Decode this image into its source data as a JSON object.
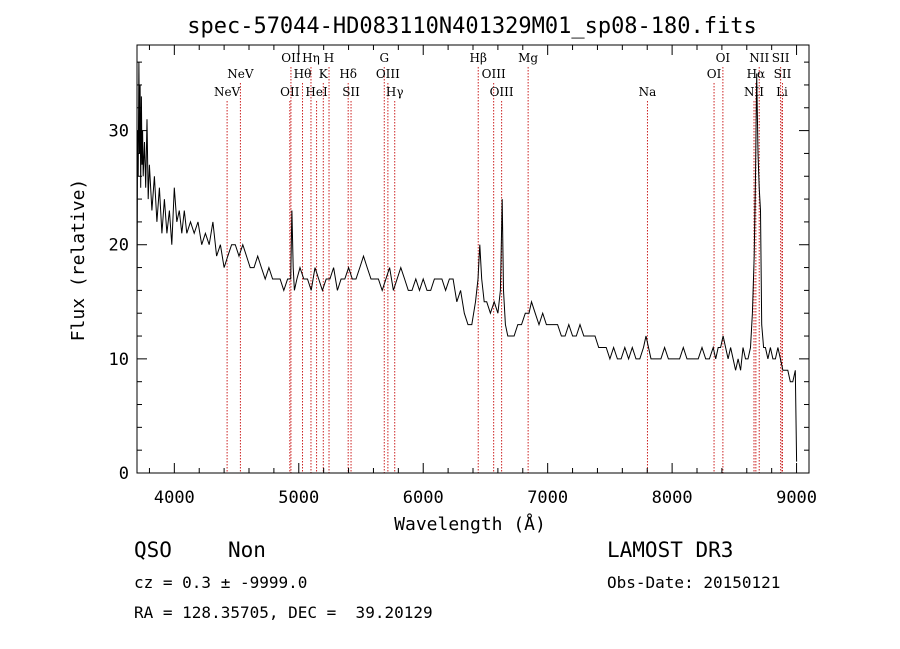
{
  "chart_data": {
    "type": "line",
    "title": "spec-57044-HD083110N401329M01_sp08-180.fits",
    "xlabel": "Wavelength (Å)",
    "ylabel": "Flux (relative)",
    "xlim": [
      3700,
      9100
    ],
    "ylim": [
      0,
      37.5
    ],
    "xticks": [
      4000,
      5000,
      6000,
      7000,
      8000,
      9000
    ],
    "yticks": [
      0,
      10,
      20,
      30
    ],
    "grid": false,
    "line_color": "#000000",
    "marker_color": "#cc2222",
    "series": [
      {
        "x": [
          3700,
          3705,
          3710,
          3715,
          3720,
          3725,
          3730,
          3735,
          3740,
          3745,
          3750,
          3760,
          3770,
          3780,
          3790,
          3800,
          3820,
          3840,
          3860,
          3880,
          3900,
          3920,
          3940,
          3960,
          3980,
          4000,
          4020,
          4040,
          4060,
          4080,
          4100,
          4130,
          4160,
          4190,
          4220,
          4250,
          4280,
          4310,
          4340,
          4370,
          4400,
          4430,
          4460,
          4490,
          4520,
          4550,
          4580,
          4610,
          4640,
          4670,
          4700,
          4730,
          4760,
          4790,
          4820,
          4850,
          4880,
          4910,
          4935,
          4945,
          4955,
          4965,
          4985,
          5010,
          5040,
          5070,
          5100,
          5130,
          5160,
          5190,
          5220,
          5250,
          5280,
          5310,
          5340,
          5370,
          5400,
          5430,
          5460,
          5490,
          5520,
          5550,
          5580,
          5610,
          5640,
          5670,
          5700,
          5730,
          5760,
          5790,
          5820,
          5850,
          5880,
          5910,
          5940,
          5970,
          6000,
          6030,
          6060,
          6090,
          6120,
          6150,
          6180,
          6210,
          6240,
          6270,
          6300,
          6330,
          6360,
          6390,
          6420,
          6440,
          6455,
          6470,
          6490,
          6510,
          6540,
          6570,
          6600,
          6620,
          6635,
          6645,
          6660,
          6680,
          6700,
          6730,
          6760,
          6790,
          6820,
          6850,
          6870,
          6900,
          6930,
          6960,
          6990,
          7020,
          7050,
          7080,
          7110,
          7140,
          7170,
          7200,
          7230,
          7260,
          7290,
          7320,
          7350,
          7380,
          7410,
          7440,
          7470,
          7500,
          7530,
          7560,
          7590,
          7620,
          7650,
          7680,
          7710,
          7740,
          7770,
          7790,
          7810,
          7830,
          7850,
          7880,
          7910,
          7940,
          7970,
          8000,
          8030,
          8060,
          8090,
          8120,
          8150,
          8180,
          8210,
          8240,
          8270,
          8300,
          8330,
          8350,
          8370,
          8390,
          8410,
          8430,
          8450,
          8470,
          8490,
          8510,
          8530,
          8550,
          8570,
          8590,
          8610,
          8630,
          8645,
          8660,
          8670,
          8680,
          8690,
          8700,
          8710,
          8720,
          8735,
          8750,
          8770,
          8790,
          8810,
          8830,
          8850,
          8870,
          8890,
          8910,
          8930,
          8950,
          8970,
          8990,
          9000
        ],
        "y": [
          14,
          30,
          26,
          36,
          28,
          34,
          25,
          33,
          27,
          30,
          26,
          29,
          25,
          31,
          24,
          27,
          23,
          26,
          22,
          25,
          21,
          24,
          21,
          23,
          20,
          25,
          22,
          23,
          21,
          23,
          21,
          22,
          21,
          22,
          20,
          21,
          20,
          22,
          19,
          20,
          18,
          19,
          20,
          20,
          19,
          20,
          19,
          18,
          18,
          19,
          18,
          17,
          18,
          17,
          17,
          17,
          16,
          17,
          17,
          23,
          18,
          16,
          17,
          18,
          17,
          17,
          16,
          18,
          17,
          16,
          17,
          17,
          18,
          16,
          17,
          17,
          18,
          17,
          17,
          18,
          19,
          18,
          17,
          17,
          17,
          16,
          17,
          18,
          16,
          17,
          18,
          17,
          16,
          16,
          17,
          16,
          17,
          16,
          16,
          17,
          17,
          17,
          16,
          17,
          17,
          15,
          16,
          14,
          13,
          13,
          15,
          17,
          20,
          17,
          15,
          15,
          14,
          15,
          14,
          16,
          24,
          16,
          13,
          12,
          12,
          12,
          13,
          13,
          14,
          14,
          15,
          14,
          13,
          14,
          13,
          13,
          13,
          13,
          12,
          12,
          13,
          12,
          12,
          13,
          12,
          12,
          12,
          12,
          11,
          11,
          11,
          10,
          11,
          10,
          10,
          11,
          10,
          11,
          10,
          10,
          11,
          12,
          11,
          10,
          10,
          10,
          10,
          11,
          10,
          10,
          10,
          10,
          11,
          10,
          10,
          10,
          10,
          11,
          10,
          10,
          11,
          10,
          11,
          11,
          12,
          11,
          10,
          11,
          10,
          9,
          10,
          9,
          11,
          10,
          10,
          11,
          14,
          19,
          26,
          35,
          28,
          25,
          23,
          13,
          11,
          11,
          10,
          11,
          10,
          10,
          11,
          10,
          9,
          9,
          9,
          8,
          8,
          9,
          1
        ]
      }
    ],
    "lines": [
      {
        "labels": [
          "NeV"
        ],
        "x": 4424,
        "row": 3
      },
      {
        "labels": [
          "NeV"
        ],
        "x": 4531,
        "row": 2
      },
      {
        "labels": [
          "OII"
        ],
        "x": 4928,
        "row": 3
      },
      {
        "labels": [
          "OII"
        ],
        "x": 4937,
        "row": 1
      },
      {
        "labels": [
          "Hθ"
        ],
        "x": 5030,
        "row": 2
      },
      {
        "labels": [
          "Hη"
        ],
        "x": 5098,
        "row": 1
      },
      {
        "labels": [
          "HeI"
        ],
        "x": 5143,
        "row": 3
      },
      {
        "labels": [
          "K"
        ],
        "x": 5197,
        "row": 2
      },
      {
        "labels": [
          "H"
        ],
        "x": 5243,
        "row": 1
      },
      {
        "labels": [
          "Hδ"
        ],
        "x": 5397,
        "row": 2
      },
      {
        "labels": [
          "SII"
        ],
        "x": 5420,
        "row": 3
      },
      {
        "labels": [
          "G"
        ],
        "x": 5687,
        "row": 1
      },
      {
        "labels": [
          "OIII"
        ],
        "x": 5716,
        "row": 2
      },
      {
        "labels": [
          "Hγ"
        ],
        "x": 5771,
        "row": 3
      },
      {
        "labels": [
          "Hβ"
        ],
        "x": 6442,
        "row": 1
      },
      {
        "labels": [
          "OIII"
        ],
        "x": 6566,
        "row": 2
      },
      {
        "labels": [
          "OIII"
        ],
        "x": 6630,
        "row": 3
      },
      {
        "labels": [
          "Mg"
        ],
        "x": 6843,
        "row": 1
      },
      {
        "labels": [
          "Na"
        ],
        "x": 7802,
        "row": 3
      },
      {
        "labels": [
          "OI"
        ],
        "x": 8337,
        "row": 2
      },
      {
        "labels": [
          "OI"
        ],
        "x": 8408,
        "row": 1
      },
      {
        "labels": [
          "NII"
        ],
        "x": 8658,
        "row": 3
      },
      {
        "labels": [
          "Hα"
        ],
        "x": 8673,
        "row": 2
      },
      {
        "labels": [
          "NII"
        ],
        "x": 8700,
        "row": 1
      },
      {
        "labels": [
          "SII"
        ],
        "x": 8872,
        "row": 1
      },
      {
        "labels": [
          "SII"
        ],
        "x": 8887,
        "row": 2
      },
      {
        "labels": [
          "Li"
        ],
        "x": 8883,
        "row": 3
      }
    ]
  },
  "info": {
    "class": "QSO",
    "subclass": "Non",
    "survey": "LAMOST DR3",
    "cz": "cz = 0.3 ± -9999.0",
    "obs_date": "Obs-Date: 20150121",
    "radec": "RA = 128.35705, DEC =  39.20129"
  }
}
